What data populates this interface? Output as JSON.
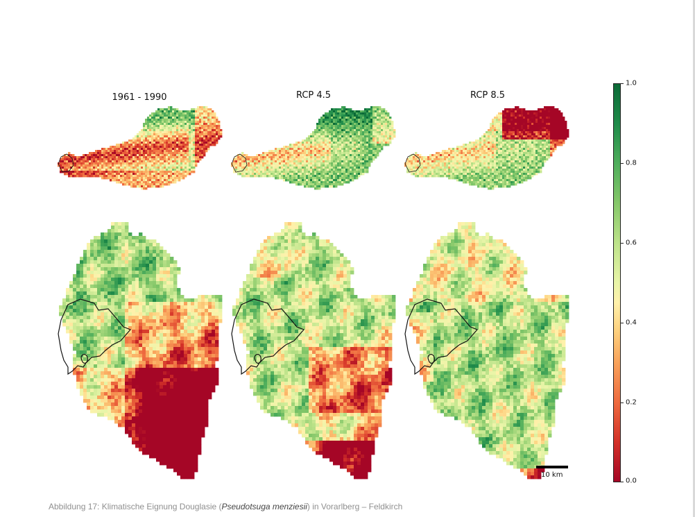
{
  "panels": [
    {
      "title": "1961 - 1990",
      "scenario": "historic"
    },
    {
      "title": "RCP 4.5",
      "scenario": "rcp45"
    },
    {
      "title": "RCP 8.5",
      "scenario": "rcp85"
    }
  ],
  "colorbar": {
    "ticks": [
      "1.0",
      "0.8",
      "0.6",
      "0.4",
      "0.2",
      "0.0"
    ],
    "low_color": "#a50626",
    "mid_color": "#fff1ab",
    "high_color": "#0b6a37"
  },
  "scalebar": {
    "label": "10 km"
  },
  "caption": {
    "before": "Abbildung 17: Klimatische Eignung Douglasie (",
    "species": "Pseudotsuga menziesii",
    "after": ") in Vorarlberg – Feldkirch"
  }
}
